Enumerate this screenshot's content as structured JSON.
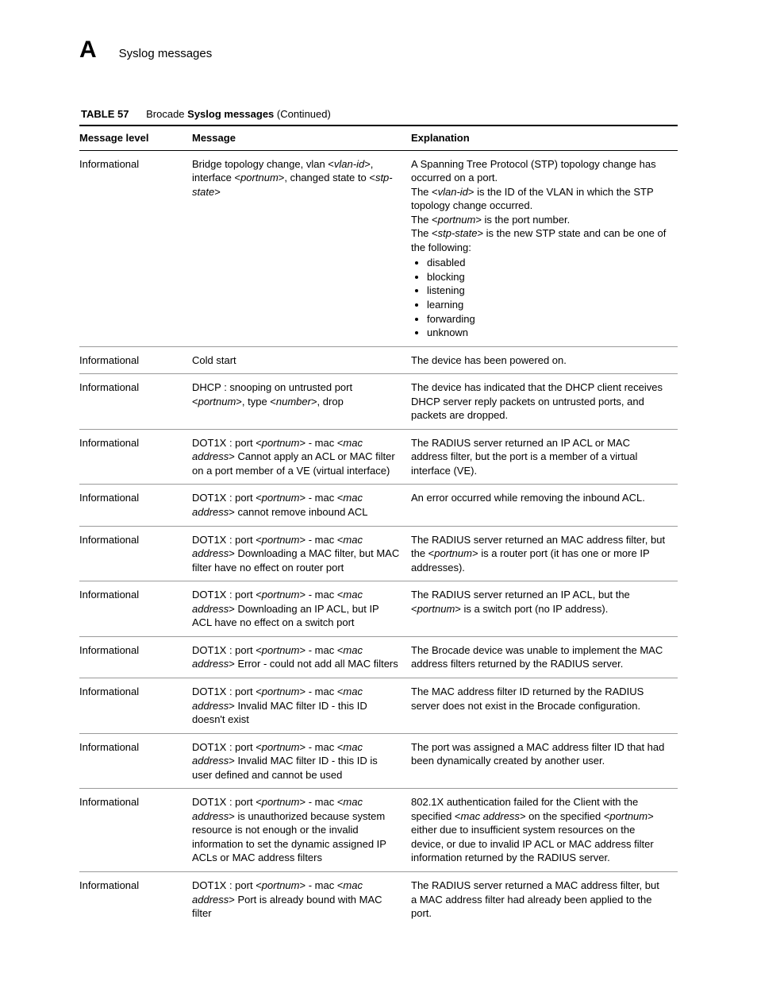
{
  "header": {
    "appendix_letter": "A",
    "running_title": "Syslog messages"
  },
  "table": {
    "caption_label": "TABLE 57",
    "caption_prefix": "Brocade ",
    "caption_strong": "Syslog messages",
    "caption_suffix": " (Continued)",
    "columns": {
      "level": "Message level",
      "message": "Message",
      "explanation": "Explanation"
    },
    "rows": [
      {
        "level": "Informational",
        "message_segments": [
          {
            "t": "Bridge topology change, vlan <",
            "i": false
          },
          {
            "t": "vlan-id",
            "i": true
          },
          {
            "t": ">, interface <",
            "i": false
          },
          {
            "t": "portnum",
            "i": true
          },
          {
            "t": ">, changed state to <",
            "i": false
          },
          {
            "t": "stp-state",
            "i": true
          },
          {
            "t": ">",
            "i": false
          }
        ],
        "explanation_segments": [
          {
            "t": "A Spanning Tree Protocol (STP) topology change has occurred on a port.",
            "br": true
          },
          {
            "t": "The <",
            "i": false
          },
          {
            "t": "vlan-id",
            "i": true
          },
          {
            "t": "> is the ID of the VLAN in which the STP topology change occurred.",
            "br": true
          },
          {
            "t": "The <",
            "i": false
          },
          {
            "t": "portnum",
            "i": true
          },
          {
            "t": "> is the port number.",
            "br": true
          },
          {
            "t": "The <",
            "i": false
          },
          {
            "t": "stp-state",
            "i": true
          },
          {
            "t": "> is the new STP state and can be one of the following:",
            "br": false
          }
        ],
        "explanation_list": [
          "disabled",
          "blocking",
          "listening",
          "learning",
          "forwarding",
          "unknown"
        ]
      },
      {
        "level": "Informational",
        "message_segments": [
          {
            "t": "Cold start",
            "i": false
          }
        ],
        "explanation_segments": [
          {
            "t": "The device has been powered on.",
            "i": false
          }
        ]
      },
      {
        "level": "Informational",
        "message_segments": [
          {
            "t": "DHCP : snooping on untrusted port <",
            "i": false
          },
          {
            "t": "portnum",
            "i": true
          },
          {
            "t": ">, type <",
            "i": false
          },
          {
            "t": "number",
            "i": true
          },
          {
            "t": ">, drop",
            "i": false
          }
        ],
        "explanation_segments": [
          {
            "t": "The device has indicated that the DHCP client receives DHCP server reply packets on untrusted ports, and packets are dropped.",
            "i": false
          }
        ]
      },
      {
        "level": "Informational",
        "message_segments": [
          {
            "t": "DOT1X : port <",
            "i": false
          },
          {
            "t": "portnum",
            "i": true
          },
          {
            "t": "> - mac <",
            "i": false
          },
          {
            "t": "mac address",
            "i": true
          },
          {
            "t": "> Cannot apply an ACL or MAC filter on a port member of a VE (virtual interface)",
            "i": false
          }
        ],
        "explanation_segments": [
          {
            "t": "The RADIUS server returned an IP ACL or MAC address filter, but the port is a member of a virtual interface (VE).",
            "i": false
          }
        ]
      },
      {
        "level": "Informational",
        "message_segments": [
          {
            "t": "DOT1X : port <",
            "i": false
          },
          {
            "t": "portnum",
            "i": true
          },
          {
            "t": "> - mac <",
            "i": false
          },
          {
            "t": "mac address",
            "i": true
          },
          {
            "t": "> cannot remove inbound ACL",
            "i": false
          }
        ],
        "explanation_segments": [
          {
            "t": "An error occurred while removing the inbound ACL.",
            "i": false
          }
        ]
      },
      {
        "level": "Informational",
        "message_segments": [
          {
            "t": "DOT1X : port <",
            "i": false
          },
          {
            "t": "portnum",
            "i": true
          },
          {
            "t": "> - mac <",
            "i": false
          },
          {
            "t": "mac address",
            "i": true
          },
          {
            "t": "> Downloading a MAC filter, but MAC filter have no effect on router port",
            "i": false
          }
        ],
        "explanation_segments": [
          {
            "t": "The RADIUS server returned an MAC address filter, but the <",
            "i": false
          },
          {
            "t": "portnum",
            "i": true
          },
          {
            "t": "> is a router port (it has one or more IP addresses).",
            "i": false
          }
        ]
      },
      {
        "level": "Informational",
        "message_segments": [
          {
            "t": "DOT1X : port <",
            "i": false
          },
          {
            "t": "portnum",
            "i": true
          },
          {
            "t": "> - mac <",
            "i": false
          },
          {
            "t": "mac address",
            "i": true
          },
          {
            "t": "> Downloading an IP ACL, but IP ACL have no effect on a switch port",
            "i": false
          }
        ],
        "explanation_segments": [
          {
            "t": "The RADIUS server returned an IP ACL, but the <",
            "i": false
          },
          {
            "t": "portnum",
            "i": true
          },
          {
            "t": "> is a switch port (no IP address).",
            "i": false
          }
        ]
      },
      {
        "level": "Informational",
        "message_segments": [
          {
            "t": "DOT1X : port <",
            "i": false
          },
          {
            "t": "portnum",
            "i": true
          },
          {
            "t": "> - mac <",
            "i": false
          },
          {
            "t": "mac address",
            "i": true
          },
          {
            "t": "> Error - could not add all MAC filters",
            "i": false
          }
        ],
        "explanation_segments": [
          {
            "t": "The Brocade device was unable to implement the MAC address filters returned by the RADIUS server.",
            "i": false
          }
        ]
      },
      {
        "level": "Informational",
        "message_segments": [
          {
            "t": "DOT1X : port <",
            "i": false
          },
          {
            "t": "portnum",
            "i": true
          },
          {
            "t": "> - mac <",
            "i": false
          },
          {
            "t": "mac address",
            "i": true
          },
          {
            "t": "> Invalid MAC filter ID - this ID doesn't exist",
            "i": false
          }
        ],
        "explanation_segments": [
          {
            "t": "The MAC address filter ID returned by the RADIUS server does not exist in the Brocade configuration.",
            "i": false
          }
        ]
      },
      {
        "level": "Informational",
        "message_segments": [
          {
            "t": "DOT1X : port <",
            "i": false
          },
          {
            "t": "portnum",
            "i": true
          },
          {
            "t": "> - mac <",
            "i": false
          },
          {
            "t": "mac address",
            "i": true
          },
          {
            "t": "> Invalid MAC filter ID - this ID is user defined and cannot be used",
            "i": false
          }
        ],
        "explanation_segments": [
          {
            "t": "The port was assigned a MAC address filter ID that had been dynamically created by another user.",
            "i": false
          }
        ]
      },
      {
        "level": "Informational",
        "message_segments": [
          {
            "t": "DOT1X : port <",
            "i": false
          },
          {
            "t": "portnum",
            "i": true
          },
          {
            "t": "> - mac <",
            "i": false
          },
          {
            "t": "mac address",
            "i": true
          },
          {
            "t": "> is unauthorized because system resource is not enough or the invalid information to set the dynamic assigned IP ACLs or MAC address filters",
            "i": false
          }
        ],
        "explanation_segments": [
          {
            "t": "802.1X authentication failed for the Client with the specified <",
            "i": false
          },
          {
            "t": "mac address",
            "i": true
          },
          {
            "t": "> on the specified <",
            "i": false
          },
          {
            "t": "portnum",
            "i": true
          },
          {
            "t": "> either due to insufficient system resources on the device, or due to invalid IP ACL or MAC address filter information returned by the RADIUS server.",
            "i": false
          }
        ]
      },
      {
        "level": "Informational",
        "message_segments": [
          {
            "t": "DOT1X : port <",
            "i": false
          },
          {
            "t": "portnum",
            "i": true
          },
          {
            "t": "> - mac <",
            "i": false
          },
          {
            "t": "mac address",
            "i": true
          },
          {
            "t": "> Port is already bound with MAC filter",
            "i": false
          }
        ],
        "explanation_segments": [
          {
            "t": "The RADIUS server returned a MAC address filter, but a MAC address filter had already been applied to the port.",
            "i": false
          }
        ]
      }
    ]
  }
}
